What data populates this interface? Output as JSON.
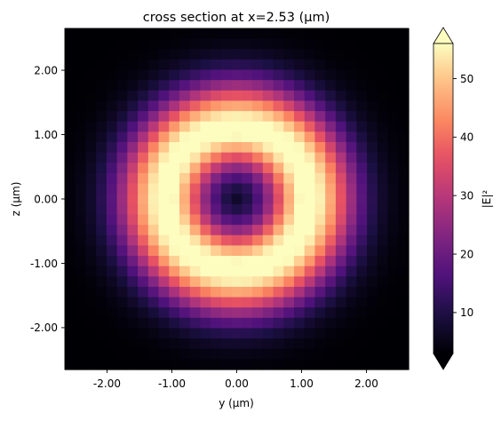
{
  "chart_data": {
    "type": "heatmap",
    "title": "cross section at x=2.53 (μm)",
    "xlabel": "y (μm)",
    "ylabel": "z (μm)",
    "xlim": [
      -2.65,
      2.65
    ],
    "ylim": [
      -2.65,
      2.65
    ],
    "xticks": [
      {
        "value": -2,
        "label": "-2.00"
      },
      {
        "value": -1,
        "label": "-1.00"
      },
      {
        "value": 0,
        "label": "0.00"
      },
      {
        "value": 1,
        "label": "1.00"
      },
      {
        "value": 2,
        "label": "2.00"
      }
    ],
    "yticks": [
      {
        "value": -2,
        "label": "-2.00"
      },
      {
        "value": -1,
        "label": "-1.00"
      },
      {
        "value": 0,
        "label": "0.00"
      },
      {
        "value": 1,
        "label": "1.00"
      },
      {
        "value": 2,
        "label": "2.00"
      }
    ],
    "grid": false,
    "colormap": "magma",
    "colorbar": {
      "label": "|E|²",
      "vmin": 3,
      "vmax": 56,
      "extend": "both",
      "ticks": [
        {
          "value": 10,
          "label": "10"
        },
        {
          "value": 20,
          "label": "20"
        },
        {
          "value": 30,
          "label": "30"
        },
        {
          "value": 40,
          "label": "40"
        },
        {
          "value": 50,
          "label": "50"
        }
      ]
    },
    "field": {
      "description_values": "donut-shaped ring intensity centered at (0,0)",
      "grid_size": 33,
      "extent": [
        -2.65,
        2.65,
        -2.65,
        2.65
      ],
      "ring_radius": 1.1,
      "center_value": 5,
      "peak_value": 58,
      "edge_value": 3
    }
  }
}
